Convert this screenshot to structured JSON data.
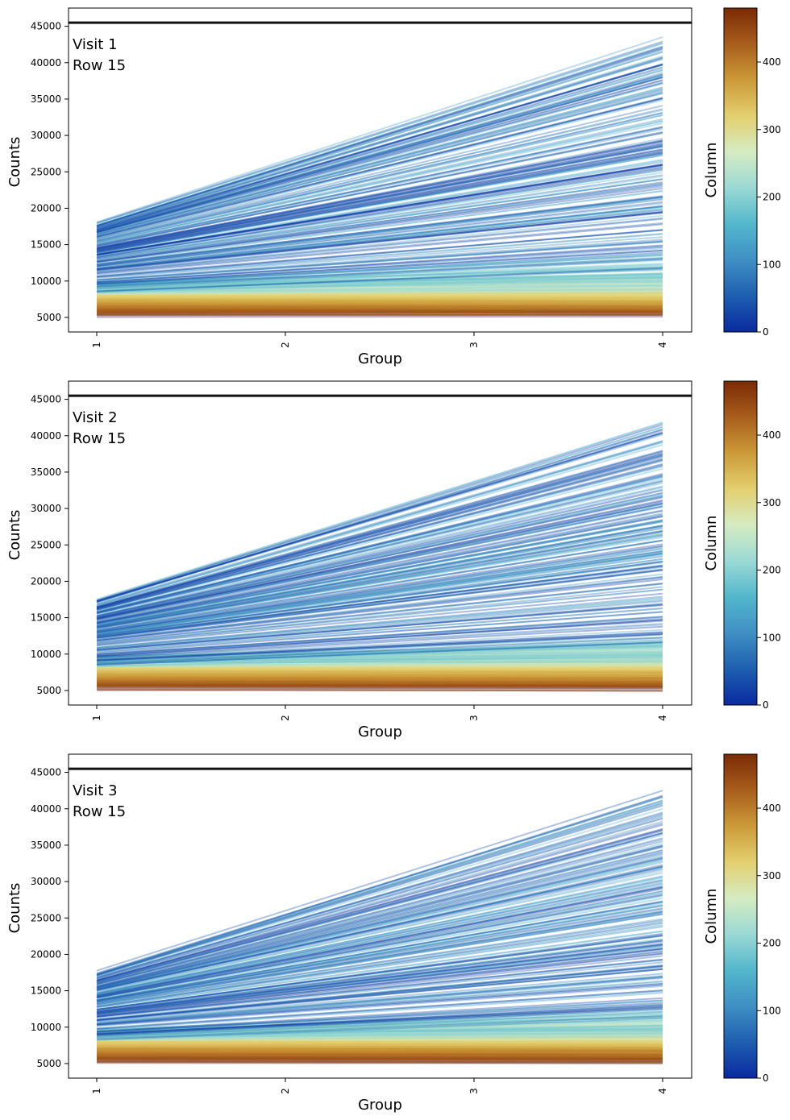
{
  "colors": {
    "colormap": [
      "#0a2aa0",
      "#1e5fb0",
      "#3f8fc4",
      "#52b7cc",
      "#9ad9d4",
      "#d5ecc2",
      "#e3cf6e",
      "#cc9a38",
      "#a85e1c",
      "#7a2b05"
    ],
    "threshold_line": "#111111",
    "axes": "#000000"
  },
  "chart_data": [
    {
      "type": "line",
      "title": "",
      "annotation": [
        "Visit 1",
        "Row 15"
      ],
      "xlabel": "Group",
      "ylabel": "Counts",
      "x": [
        1,
        2,
        3,
        4
      ],
      "x_tick_labels": [
        "1",
        "2",
        "3",
        "4"
      ],
      "ylim": [
        3000,
        47500
      ],
      "y_ticks": [
        5000,
        10000,
        15000,
        20000,
        25000,
        30000,
        35000,
        40000,
        45000
      ],
      "y_tick_labels": [
        "5000",
        "10000",
        "15000",
        "20000",
        "25000",
        "30000",
        "35000",
        "40000",
        "45000"
      ],
      "threshold": 45500,
      "series_summary": {
        "n_lines": 480,
        "low_start": 5000,
        "low_end": 5000,
        "high_start": 18000,
        "high_end": 43500
      },
      "colorbar": {
        "label": "Column",
        "range": [
          0,
          480
        ],
        "ticks": [
          0,
          100,
          200,
          300,
          400
        ],
        "tick_labels": [
          "0",
          "100",
          "200",
          "300",
          "400"
        ]
      }
    },
    {
      "type": "line",
      "title": "",
      "annotation": [
        "Visit 2",
        "Row 15"
      ],
      "xlabel": "Group",
      "ylabel": "Counts",
      "x": [
        1,
        2,
        3,
        4
      ],
      "x_tick_labels": [
        "1",
        "2",
        "3",
        "4"
      ],
      "ylim": [
        3000,
        47500
      ],
      "y_ticks": [
        5000,
        10000,
        15000,
        20000,
        25000,
        30000,
        35000,
        40000,
        45000
      ],
      "y_tick_labels": [
        "5000",
        "10000",
        "15000",
        "20000",
        "25000",
        "30000",
        "35000",
        "40000",
        "45000"
      ],
      "threshold": 45500,
      "series_summary": {
        "n_lines": 480,
        "low_start": 5000,
        "low_end": 5000,
        "high_start": 17500,
        "high_end": 42000
      },
      "colorbar": {
        "label": "Column",
        "range": [
          0,
          480
        ],
        "ticks": [
          0,
          100,
          200,
          300,
          400
        ],
        "tick_labels": [
          "0",
          "100",
          "200",
          "300",
          "400"
        ]
      }
    },
    {
      "type": "line",
      "title": "",
      "annotation": [
        "Visit 3",
        "Row 15"
      ],
      "xlabel": "Group",
      "ylabel": "Counts",
      "x": [
        1,
        2,
        3,
        4
      ],
      "x_tick_labels": [
        "1",
        "2",
        "3",
        "4"
      ],
      "ylim": [
        3000,
        47500
      ],
      "y_ticks": [
        5000,
        10000,
        15000,
        20000,
        25000,
        30000,
        35000,
        40000,
        45000
      ],
      "y_tick_labels": [
        "5000",
        "10000",
        "15000",
        "20000",
        "25000",
        "30000",
        "35000",
        "40000",
        "45000"
      ],
      "threshold": 45500,
      "series_summary": {
        "n_lines": 480,
        "low_start": 5000,
        "low_end": 5000,
        "high_start": 17500,
        "high_end": 42500
      },
      "colorbar": {
        "label": "Column",
        "range": [
          0,
          480
        ],
        "ticks": [
          0,
          100,
          200,
          300,
          400
        ],
        "tick_labels": [
          "0",
          "100",
          "200",
          "300",
          "400"
        ]
      }
    }
  ]
}
